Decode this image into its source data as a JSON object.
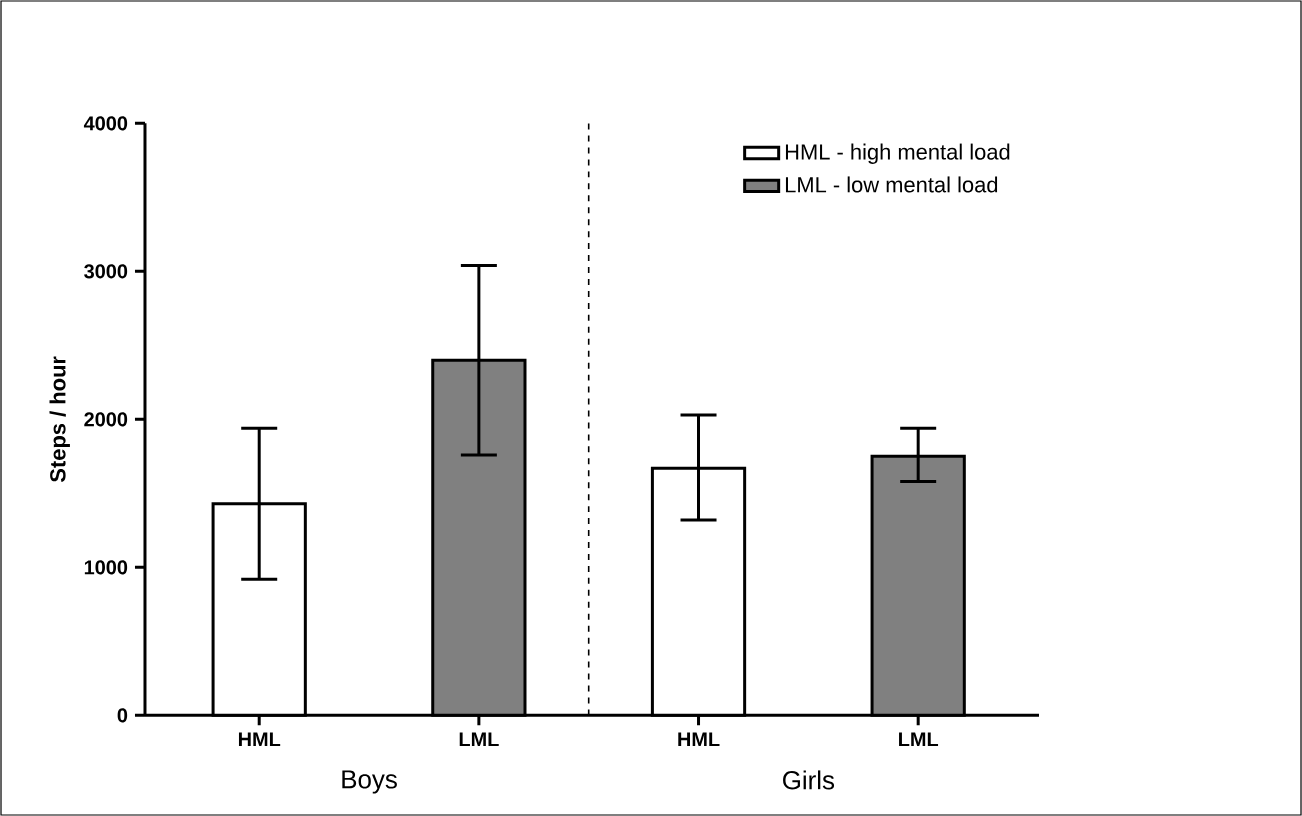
{
  "chart_data": {
    "type": "bar",
    "ylabel": "Steps / hour",
    "categories": [
      "HML",
      "LML",
      "HML",
      "LML"
    ],
    "series": [
      {
        "name": "HML - high mental load",
        "color": "#ffffff",
        "values": [
          1430,
          null,
          1670,
          null
        ],
        "errors": [
          [
            920,
            1940
          ],
          null,
          [
            1320,
            2030
          ],
          null
        ]
      },
      {
        "name": "LML - low mental load",
        "color": "#808080",
        "values": [
          null,
          2400,
          null,
          1750
        ],
        "errors": [
          null,
          [
            1760,
            3040
          ],
          null,
          [
            1580,
            1940
          ]
        ]
      }
    ],
    "ylim": [
      0,
      4000
    ],
    "yticks": [
      0,
      1000,
      2000,
      3000,
      4000
    ],
    "annotations": [
      "Boys",
      "Girls"
    ],
    "grid": false,
    "legend": "top right"
  }
}
